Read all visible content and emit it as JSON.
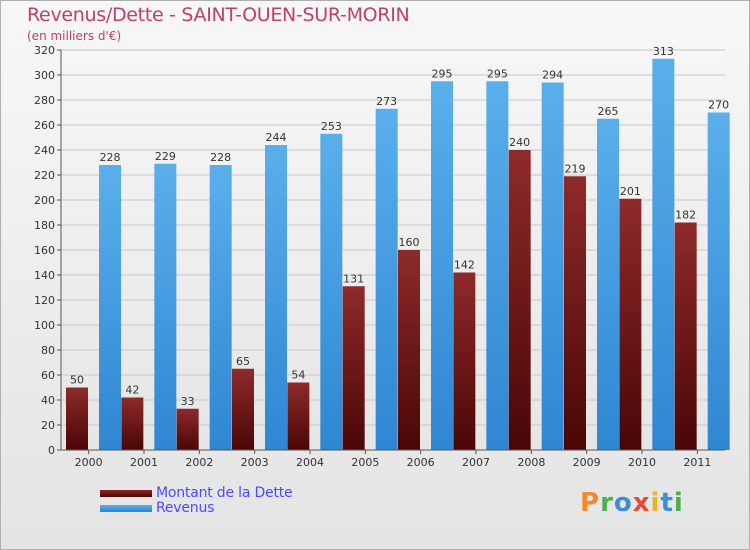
{
  "title": "Revenus/Dette - SAINT-OUEN-SUR-MORIN",
  "subtitle": "(en milliers d'€)",
  "logo": "Proxiti",
  "colors": {
    "title": "#c0406a",
    "dette": "#7a1616",
    "revenus": "#4aa3e6",
    "legend_text": "#4a4aff"
  },
  "legend": [
    {
      "label": "Montant de la Dette",
      "color": "#6a0e0e"
    },
    {
      "label": "Revenus",
      "color": "#3f95de"
    }
  ],
  "chart_data": {
    "type": "bar",
    "title": "Revenus/Dette - SAINT-OUEN-SUR-MORIN",
    "subtitle": "(en milliers d'€)",
    "categories": [
      "2000",
      "2001",
      "2002",
      "2003",
      "2004",
      "2005",
      "2006",
      "2007",
      "2008",
      "2009",
      "2010",
      "2011"
    ],
    "series": [
      {
        "name": "Montant de la Dette",
        "values": [
          50,
          42,
          33,
          65,
          54,
          131,
          160,
          142,
          240,
          219,
          201,
          182
        ]
      },
      {
        "name": "Revenus",
        "values": [
          228,
          229,
          228,
          244,
          253,
          273,
          295,
          295,
          294,
          265,
          313,
          270
        ]
      }
    ],
    "ylim": [
      0,
      320
    ],
    "yticks": [
      0,
      20,
      40,
      60,
      80,
      100,
      120,
      140,
      160,
      180,
      200,
      220,
      240,
      260,
      280,
      300,
      320
    ],
    "grid": true,
    "legend_position": "bottom-left"
  }
}
